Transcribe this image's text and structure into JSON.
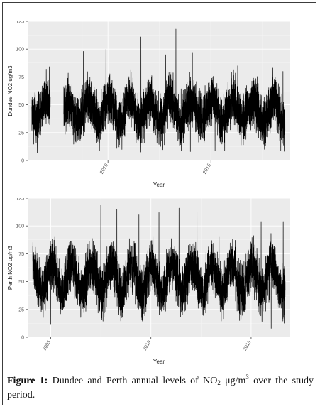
{
  "caption": {
    "label": "Figure 1:",
    "text_before": "Dundee and Perth annual levels of NO",
    "sub": "2",
    "text_mid": " μg/m",
    "sup": "3",
    "text_after": " over the study period."
  },
  "chart_data": [
    {
      "type": "line",
      "title": "",
      "xlabel": "Year",
      "ylabel": "Dundee NO2 ug/m3",
      "ylim": [
        0,
        125
      ],
      "xlim": [
        2006.1,
        2018.85
      ],
      "yticks": [
        0,
        25,
        50,
        75,
        100,
        125
      ],
      "xticks": [
        {
          "value": 2010,
          "label": "2010"
        },
        {
          "value": 2015,
          "label": "2015"
        }
      ],
      "grid": true,
      "background": "#ebebeb",
      "line_color": "#000000",
      "series": [
        {
          "x_start": 2006.3,
          "x_end": 2018.6,
          "gaps": [
            [
              2007.2,
              2007.85
            ]
          ],
          "base_level": 45,
          "seasonal_amplitude": 10,
          "noise_amplitude": 32,
          "peaks": [
            {
              "x": 2007.0,
              "y": 82
            },
            {
              "x": 2008.8,
              "y": 98
            },
            {
              "x": 2009.9,
              "y": 100
            },
            {
              "x": 2011.6,
              "y": 111
            },
            {
              "x": 2012.8,
              "y": 95
            },
            {
              "x": 2013.3,
              "y": 118
            },
            {
              "x": 2014.1,
              "y": 97
            },
            {
              "x": 2016.3,
              "y": 85
            },
            {
              "x": 2018.5,
              "y": 80
            }
          ],
          "troughs": [
            {
              "x": 2014.0,
              "y": 8
            },
            {
              "x": 2015.2,
              "y": 9
            },
            {
              "x": 2017.6,
              "y": 10
            }
          ]
        }
      ]
    },
    {
      "type": "line",
      "title": "",
      "xlabel": "Year",
      "ylabel": "Perth NO2 ug/m3",
      "ylim": [
        0,
        125
      ],
      "xlim": [
        2003.85,
        2016.95
      ],
      "yticks": [
        0,
        25,
        50,
        75,
        100,
        125
      ],
      "xticks": [
        {
          "value": 2005,
          "label": "2005"
        },
        {
          "value": 2010,
          "label": "2010"
        },
        {
          "value": 2015,
          "label": "2015"
        }
      ],
      "grid": true,
      "background": "#ebebeb",
      "line_color": "#000000",
      "series": [
        {
          "x_start": 2004.1,
          "x_end": 2016.7,
          "gaps": [],
          "base_level": 53,
          "seasonal_amplitude": 13,
          "noise_amplitude": 32,
          "peaks": [
            {
              "x": 2005.2,
              "y": 90
            },
            {
              "x": 2007.5,
              "y": 119
            },
            {
              "x": 2008.3,
              "y": 115
            },
            {
              "x": 2009.4,
              "y": 110
            },
            {
              "x": 2010.4,
              "y": 112
            },
            {
              "x": 2011.4,
              "y": 116
            },
            {
              "x": 2012.3,
              "y": 113
            },
            {
              "x": 2013.4,
              "y": 90
            },
            {
              "x": 2015.5,
              "y": 104
            },
            {
              "x": 2016.6,
              "y": 104
            }
          ],
          "troughs": [
            {
              "x": 2005.0,
              "y": 12
            },
            {
              "x": 2014.1,
              "y": 9
            },
            {
              "x": 2016.0,
              "y": 8
            }
          ]
        }
      ]
    }
  ]
}
